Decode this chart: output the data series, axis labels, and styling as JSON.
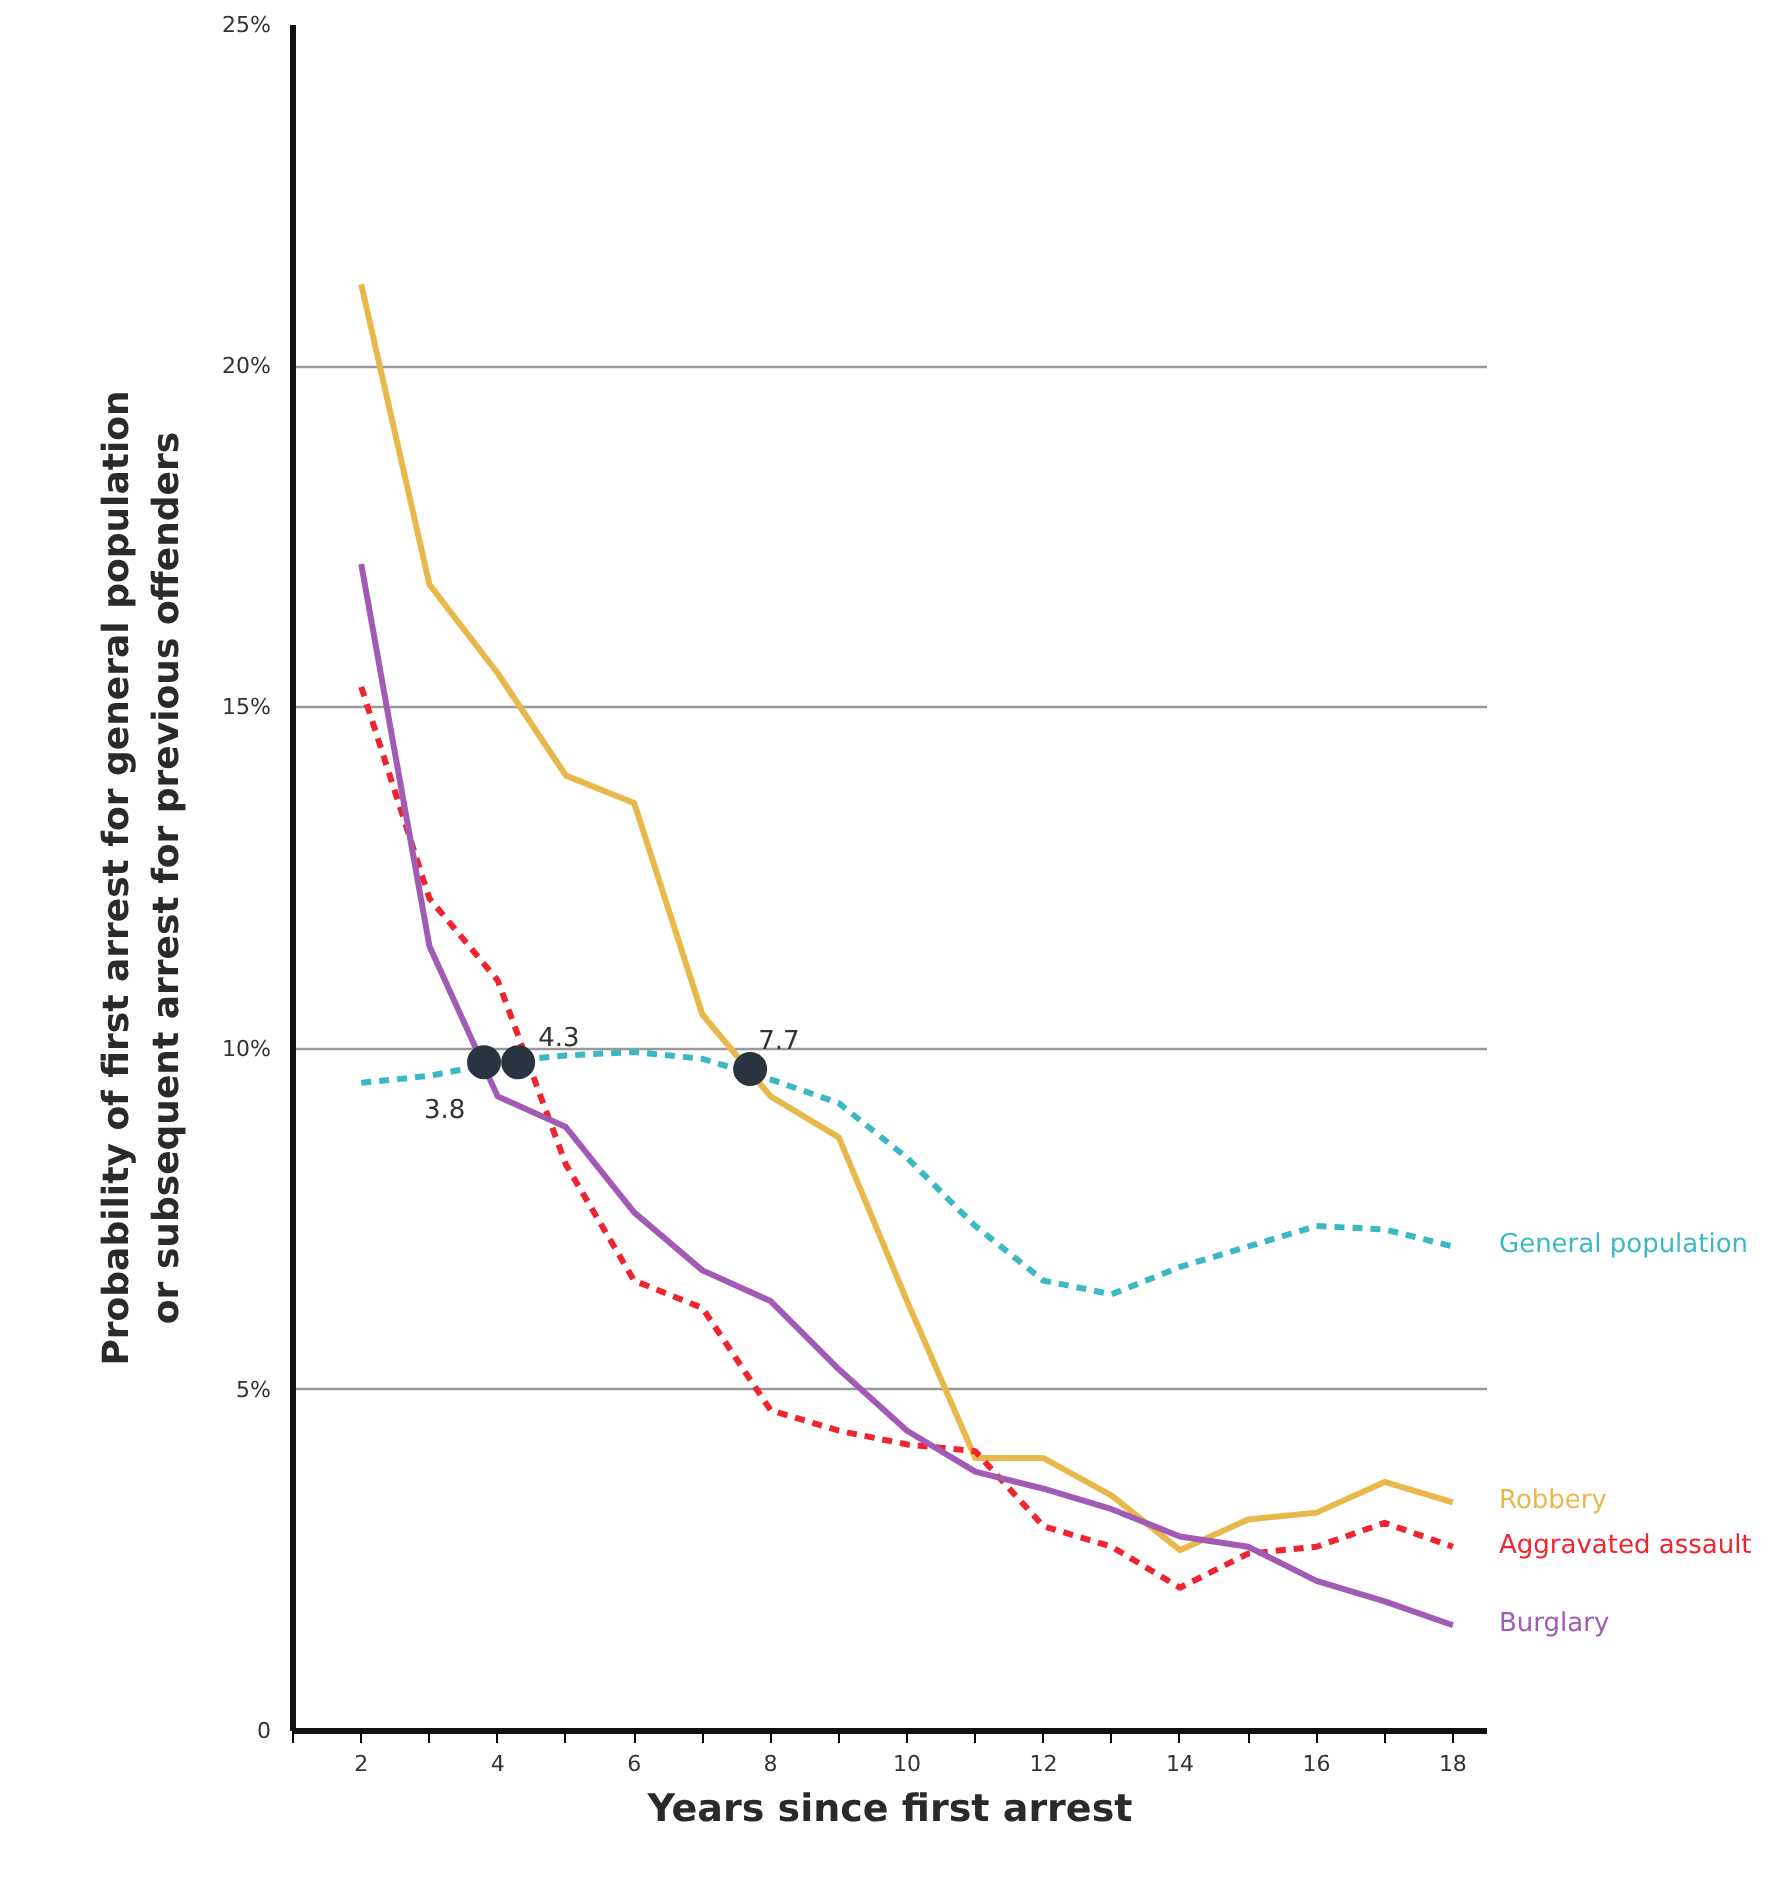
{
  "chart_data": {
    "type": "line",
    "xlabel": "Years since first arrest",
    "ylabel": "Probability of first arrest for general population\nor subsequent arrest for previous offenders",
    "x": [
      2,
      3,
      4,
      5,
      6,
      7,
      8,
      9,
      10,
      11,
      12,
      13,
      14,
      15,
      16,
      17,
      18
    ],
    "series": [
      {
        "name": "General population",
        "color": "#3bb8c4",
        "line_style": "dashed",
        "values": [
          9.5,
          9.6,
          9.8,
          9.9,
          9.95,
          9.85,
          9.55,
          9.2,
          8.4,
          7.4,
          6.6,
          6.4,
          6.8,
          7.1,
          7.4,
          7.35,
          7.1
        ]
      },
      {
        "name": "Robbery",
        "color": "#e8b84a",
        "line_style": "solid",
        "values": [
          21.2,
          16.8,
          15.5,
          14.0,
          13.6,
          10.5,
          9.3,
          8.7,
          6.3,
          4.0,
          4.0,
          3.45,
          2.65,
          3.1,
          3.2,
          3.65,
          3.35
        ]
      },
      {
        "name": "Aggravated assault",
        "color": "#f0242e",
        "line_style": "dashed",
        "values": [
          15.3,
          12.2,
          11.0,
          8.3,
          6.6,
          6.2,
          4.7,
          4.4,
          4.2,
          4.1,
          3.0,
          2.7,
          2.1,
          2.6,
          2.7,
          3.05,
          2.7
        ]
      },
      {
        "name": "Burglary",
        "color": "#a25bb5",
        "line_style": "solid",
        "values": [
          17.1,
          11.5,
          9.3,
          8.85,
          7.6,
          6.75,
          6.3,
          5.3,
          4.4,
          3.8,
          3.55,
          3.25,
          2.85,
          2.7,
          2.2,
          1.9,
          1.55
        ]
      },
      {
        "type": "scatter",
        "color": "#2a3340",
        "marker": "circle",
        "x": [
          3.8,
          4.3,
          7.7
        ],
        "values": [
          9.8,
          9.8,
          9.7
        ]
      }
    ],
    "annotations": [
      {
        "text": "3.8",
        "x": 3.8,
        "y": 9.8
      },
      {
        "text": "4.3",
        "x": 4.3,
        "y": 9.8
      },
      {
        "text": "7.7",
        "x": 7.7,
        "y": 9.7
      }
    ],
    "xlim": [
      1,
      18.5
    ],
    "xticks": [
      {
        "value": 1,
        "label": null
      },
      2,
      {
        "value": 3,
        "label": null
      },
      4,
      {
        "value": 5,
        "label": null
      },
      6,
      {
        "value": 7,
        "label": null
      },
      8,
      {
        "value": 9,
        "label": null
      },
      10,
      {
        "value": 11,
        "label": null
      },
      12,
      {
        "value": 13,
        "label": null
      },
      14,
      {
        "value": 15,
        "label": null
      },
      16,
      {
        "value": 17,
        "label": null
      },
      18
    ],
    "ylim": [
      0,
      25
    ],
    "yticks": [
      {
        "value": 0,
        "label": "0"
      },
      {
        "value": 5,
        "label": "5%"
      },
      {
        "value": 10,
        "label": "10%"
      },
      {
        "value": 15,
        "label": "15%"
      },
      {
        "value": 20,
        "label": "20%"
      },
      {
        "value": 25,
        "label": "25%"
      }
    ],
    "grid": "y"
  }
}
